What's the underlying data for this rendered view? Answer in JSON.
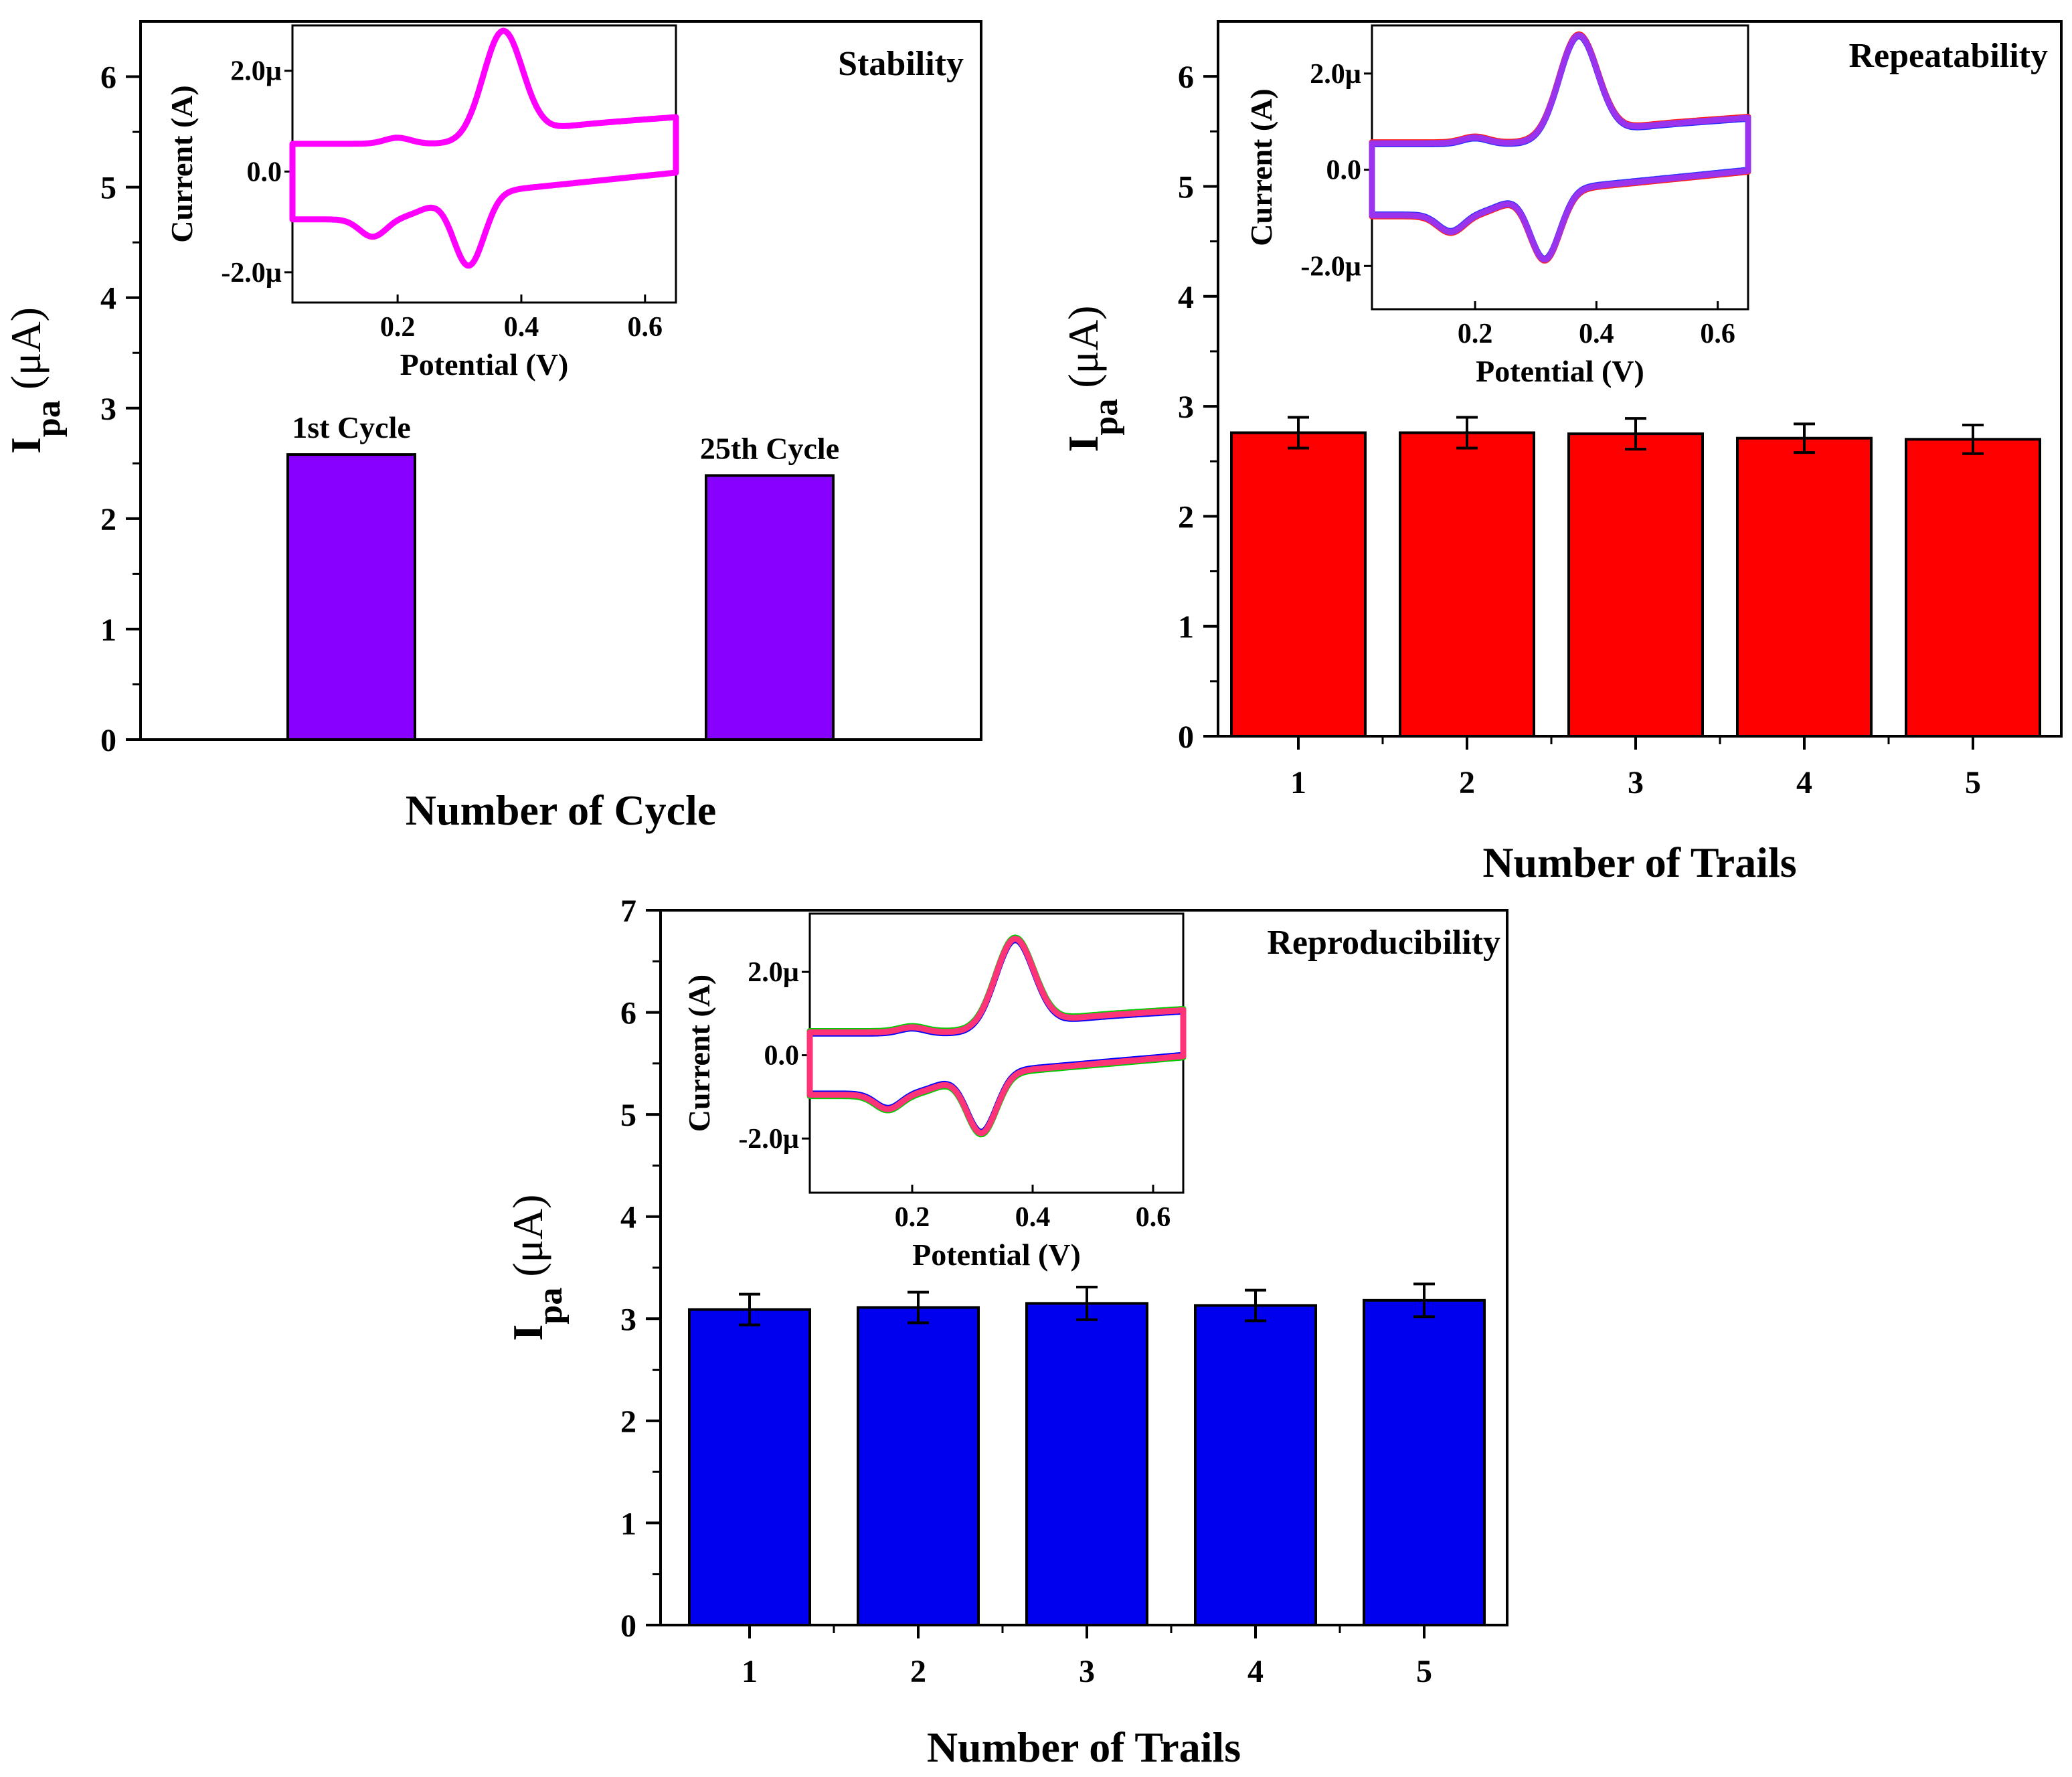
{
  "chart_data": [
    {
      "id": "stability",
      "type": "bar",
      "title": "Stability",
      "xlabel": "Number of Cycle",
      "ylabel_main": "I",
      "ylabel_sub": "pa",
      "ylabel_unit": " (μA)",
      "ylim": [
        0,
        6.5
      ],
      "yticks": [
        "0",
        "1",
        "2",
        "3",
        "4",
        "5",
        "6"
      ],
      "xticks": [],
      "color": "#8800ff",
      "bars": [
        {
          "label": "1st Cycle",
          "value": 2.58
        },
        {
          "label": "25th Cycle",
          "value": 2.39
        }
      ],
      "inset": {
        "type": "line",
        "xlabel": "Potential (V)",
        "ylabel": "Current (A)",
        "xlim": [
          0.03,
          0.65
        ],
        "ylim": [
          -2.6,
          2.9
        ],
        "xticks": [
          "0.2",
          "0.4",
          "0.6"
        ],
        "yticks": [
          "-2.0µ",
          "0.0",
          "2.0µ"
        ],
        "curves": [
          {
            "color": "#ff00ff",
            "shift": 0
          }
        ]
      }
    },
    {
      "id": "repeatability",
      "type": "bar",
      "title": "Repeatability",
      "xlabel": "Number of Trails",
      "ylabel_main": "I",
      "ylabel_sub": "pa",
      "ylabel_unit": " (μA)",
      "ylim": [
        0,
        6.5
      ],
      "yticks": [
        "0",
        "1",
        "2",
        "3",
        "4",
        "5",
        "6"
      ],
      "xticks": [
        "1",
        "2",
        "3",
        "4",
        "5"
      ],
      "color": "#ff0000",
      "bars": [
        {
          "label": "1",
          "value": 2.76,
          "error": 0.14
        },
        {
          "label": "2",
          "value": 2.76,
          "error": 0.14
        },
        {
          "label": "3",
          "value": 2.75,
          "error": 0.14
        },
        {
          "label": "4",
          "value": 2.71,
          "error": 0.13
        },
        {
          "label": "5",
          "value": 2.7,
          "error": 0.13
        }
      ],
      "inset": {
        "type": "line",
        "xlabel": "Potential (V)",
        "ylabel": "Current (A)",
        "xlim": [
          0.03,
          0.65
        ],
        "ylim": [
          -2.9,
          3.0
        ],
        "xticks": [
          "0.2",
          "0.4",
          "0.6"
        ],
        "yticks": [
          "-2.0µ",
          "0.0",
          "2.0µ"
        ],
        "curves": [
          {
            "color": "#ff2020",
            "shift": 0.02
          },
          {
            "color": "#3030ff",
            "shift": -0.02
          },
          {
            "color": "#9933ee",
            "shift": 0
          }
        ]
      }
    },
    {
      "id": "reproducibility",
      "type": "bar",
      "title": "Reproducibility",
      "xlabel": "Number of Trails",
      "ylabel_main": "I",
      "ylabel_sub": "pa",
      "ylabel_unit": " (μA)",
      "ylim": [
        0,
        7
      ],
      "yticks": [
        "0",
        "1",
        "2",
        "3",
        "4",
        "5",
        "6",
        "7"
      ],
      "xticks": [
        "1",
        "2",
        "3",
        "4",
        "5"
      ],
      "color": "#0000ee",
      "bars": [
        {
          "label": "1",
          "value": 3.09,
          "error": 0.15
        },
        {
          "label": "2",
          "value": 3.11,
          "error": 0.15
        },
        {
          "label": "3",
          "value": 3.15,
          "error": 0.16
        },
        {
          "label": "4",
          "value": 3.13,
          "error": 0.15
        },
        {
          "label": "5",
          "value": 3.18,
          "error": 0.16
        }
      ],
      "inset": {
        "type": "line",
        "xlabel": "Potential (V)",
        "ylabel": "Current (A)",
        "xlim": [
          0.03,
          0.65
        ],
        "ylim": [
          -3.3,
          3.4
        ],
        "xticks": [
          "0.2",
          "0.4",
          "0.6"
        ],
        "yticks": [
          "-2.0µ",
          "0.0",
          "2.0µ"
        ],
        "curves": [
          {
            "color": "#00cc00",
            "shift": 0.03
          },
          {
            "color": "#0000ff",
            "shift": -0.03
          },
          {
            "color": "#ff3377",
            "shift": 0
          }
        ]
      }
    }
  ]
}
